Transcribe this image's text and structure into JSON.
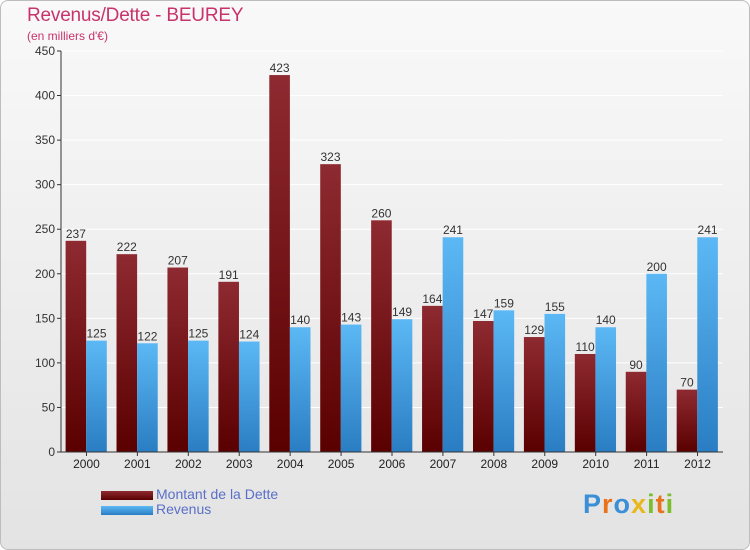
{
  "title": "Revenus/Dette - BEUREY",
  "subtitle": "(en milliers d'€)",
  "colors": {
    "dette": "#7b0f12",
    "revenus": "#3a9be0",
    "title": "#c8336b",
    "legend_text": "#5a6fc8"
  },
  "legend": {
    "dette": "Montant de la Dette",
    "revenus": "Revenus"
  },
  "logo": {
    "text": "Proxiti"
  },
  "chart_data": {
    "type": "bar",
    "title": "Revenus/Dette - BEUREY",
    "ylabel": "(en milliers d'€)",
    "xlabel": "",
    "ylim": [
      0,
      450
    ],
    "yticks": [
      0,
      50,
      100,
      150,
      200,
      250,
      300,
      350,
      400,
      450
    ],
    "categories": [
      "2000",
      "2001",
      "2002",
      "2003",
      "2004",
      "2005",
      "2006",
      "2007",
      "2008",
      "2009",
      "2010",
      "2011",
      "2012"
    ],
    "series": [
      {
        "name": "Montant de la Dette",
        "values": [
          237,
          222,
          207,
          191,
          423,
          323,
          260,
          164,
          147,
          129,
          110,
          90,
          70
        ]
      },
      {
        "name": "Revenus",
        "values": [
          125,
          122,
          125,
          124,
          140,
          143,
          149,
          241,
          159,
          155,
          140,
          200,
          241
        ]
      }
    ]
  }
}
